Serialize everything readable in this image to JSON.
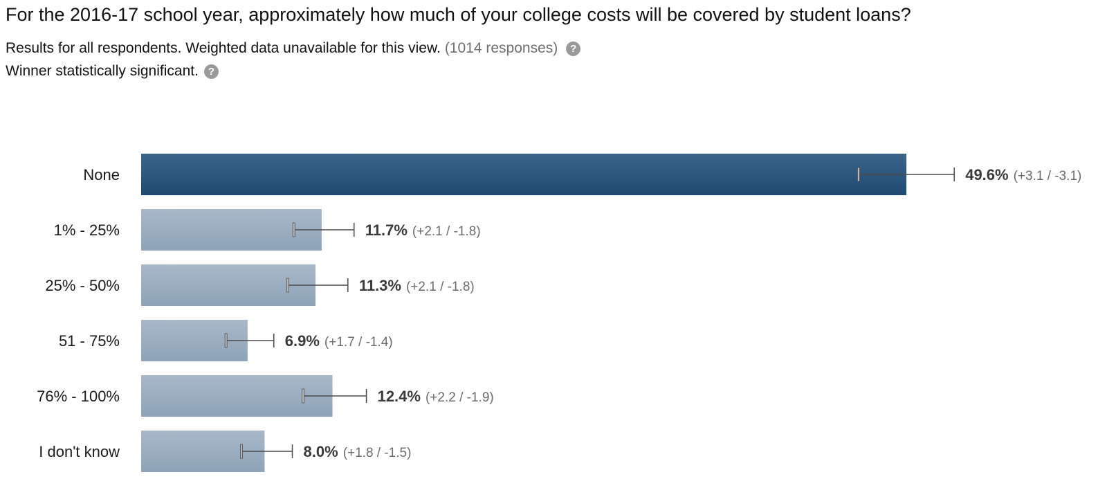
{
  "question": "For the 2016-17 school year, approximately how much of your college costs will be covered by student loans?",
  "meta": {
    "results_text": "Results for all respondents. Weighted data unavailable for this view.",
    "responses_text": "(1014 responses)",
    "significance_text": "Winner statistically significant.",
    "help_glyph": "?"
  },
  "colors": {
    "winner_top": "#3b6489",
    "winner_bottom": "#1f4a72",
    "other_top": "#a8b8c9",
    "other_bottom": "#8ea3b8",
    "error_bar": "#4a4a4a",
    "help_icon": "#9a9a9a"
  },
  "chart_data": {
    "type": "bar",
    "orientation": "horizontal",
    "categories": [
      "None",
      "1% - 25%",
      "25% - 50%",
      "51 - 75%",
      "76% - 100%",
      "I don't know"
    ],
    "values": [
      49.6,
      11.7,
      11.3,
      6.9,
      12.4,
      8.0
    ],
    "value_labels": [
      "49.6%",
      "11.7%",
      "11.3%",
      "6.9%",
      "12.4%",
      "8.0%"
    ],
    "ci_plus": [
      3.1,
      2.1,
      2.1,
      1.7,
      2.2,
      1.8
    ],
    "ci_minus": [
      3.1,
      1.8,
      1.8,
      1.4,
      1.9,
      1.5
    ],
    "ci_labels": [
      "(+3.1 / -3.1)",
      "(+2.1 / -1.8)",
      "(+2.1 / -1.8)",
      "(+1.7 / -1.4)",
      "(+2.2 / -1.9)",
      "(+1.8 / -1.5)"
    ],
    "winner_index": 0,
    "unit": "%",
    "grid": false,
    "axis_visible": false
  }
}
